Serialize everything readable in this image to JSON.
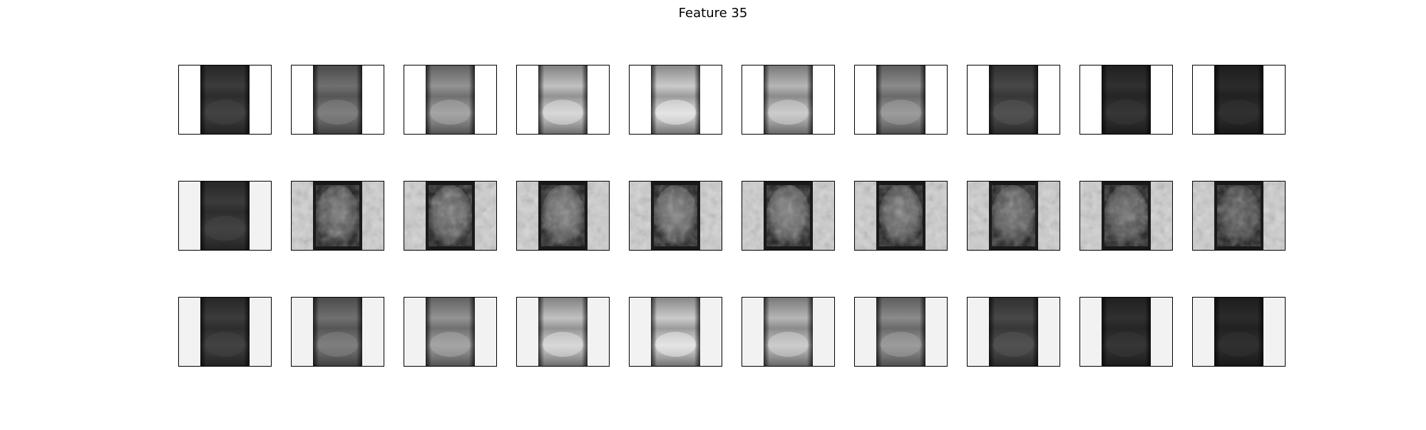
{
  "figure": {
    "title": "Feature 35"
  },
  "grid": {
    "rows": 3,
    "cols": 10,
    "row_types": [
      "filter",
      "noisy",
      "filter"
    ],
    "row_backgrounds": [
      "#ffffff",
      "#f2f2f2",
      "#f2f2f2"
    ],
    "brightness_profile": [
      0.22,
      0.42,
      0.55,
      0.72,
      0.76,
      0.68,
      0.52,
      0.27,
      0.18,
      0.16
    ],
    "noisy_contrast_profile": [
      0.0,
      0.75,
      0.8,
      0.85,
      0.85,
      0.85,
      0.8,
      0.75,
      0.7,
      0.6
    ]
  }
}
